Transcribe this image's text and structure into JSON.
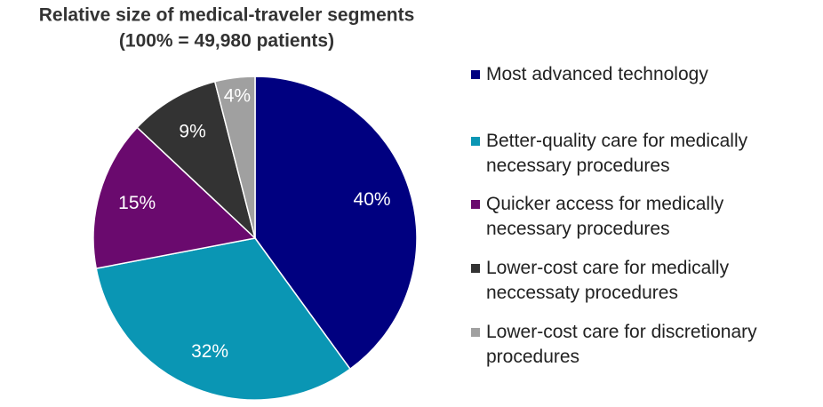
{
  "chart_data": {
    "type": "pie",
    "title": "Relative size of medical-traveler segments",
    "subtitle": "(100% = 49,980 patients)",
    "categories": [
      "Most advanced technology",
      "Better-quality care for medically necessary procedures",
      "Quicker access for medically necessary procedures",
      "Lower-cost care for medically neccessaty procedures",
      "Lower-cost care for discretionary procedures"
    ],
    "values": [
      40,
      32,
      15,
      9,
      4
    ],
    "value_labels": [
      "40%",
      "32%",
      "15%",
      "9%",
      "4%"
    ],
    "colors": [
      "#000080",
      "#0a96b4",
      "#6a0a6e",
      "#333333",
      "#a0a0a0"
    ]
  }
}
